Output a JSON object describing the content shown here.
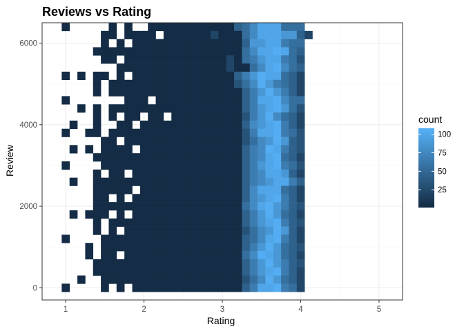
{
  "chart_data": {
    "type": "heatmap",
    "title": "Reviews vs Rating",
    "xlabel": "Rating",
    "ylabel": "Review",
    "xlim": [
      0.7,
      5.3
    ],
    "ylim": [
      -300,
      6500
    ],
    "x_ticks": [
      1,
      2,
      3,
      4,
      5
    ],
    "y_ticks": [
      0,
      2000,
      4000,
      6000
    ],
    "x_tick_labels": [
      "1",
      "2",
      "3",
      "4",
      "5"
    ],
    "y_tick_labels": [
      "0",
      "2000",
      "4000",
      "6000"
    ],
    "grid": true,
    "bin_width_x": 0.1,
    "bin_width_y": 200,
    "x_bin_start": 0.95,
    "y_bin_start": -100,
    "color_scale": {
      "low": "#132B43",
      "high": "#56B1F7",
      "min": 1,
      "max": 108
    },
    "legend": {
      "title": "count",
      "position": "right",
      "labels": [
        "100",
        "75",
        "50",
        "25"
      ],
      "breaks": [
        100,
        75,
        50,
        25
      ]
    },
    "cells": [
      [
        "...............................",
        "...............................",
        "...............................",
        "...............................",
        "...............................",
        "...............................",
        "...............................",
        "...............................",
        "...............................",
        "...............................",
        "...............................",
        "...............................",
        "...............................",
        "...............................",
        "...............................",
        "...............................",
        "...............................",
        "...............................",
        "...............................",
        "...............................",
        "...............................",
        "...............................",
        "...............................",
        "...............................",
        "...............................",
        "...............................",
        "...............................",
        "...............................",
        "...............................",
        "...............................",
        "...............................",
        "...............................",
        "..............................."
      ]
    ],
    "grid_counts": [
      "1.....1.1..11111111111457999555",
      ".....11.1111.1111112111579998842",
      ".....1.1.1111111111111148899655",
      "....11111111111111111115799A954",
      ".....11.11111111111112156899653",
      ".......11111111111111211579A754",
      "1.1.11.1.1111111111111468A99542",
      "....1.1111111111111111357A86542",
      "....1.11111111111111111468A8642",
      "1.......111.111111111114699A755",
      "..1.1.111111111111111114689A853",
      "....1.1.11.11.111111111368A7542",
      ".1..1..11.11111111111114789A642",
      "1..11.111111111111111113699A653",
      ".....11.1111111111111113578A843",
      ".1.1.1111.1111111111111467A9643",
      "....11111111111111111114679A542",
      "1....1111111111111111114689A653",
      "....1.11.1111111111111146799842",
      ".1..111111111111111111146789964",
      "....11111.111111111111147999542",
      "....11.1.111111111111114789A642",
      "....1111111111111111111579A8643",
      ".1.111.1.11111111111111468A8542",
      "....1.111111111111111114689A643",
      "....1.1.1111111111111113578A842",
      "1....1111111111111111114579A642",
      "...1.111111111111111111468A8543",
      "...1.11.11111111111111157A98542",
      "....1111111111111111111468A8643",
      "....11111111111111111114689A642",
      "..1..111111111111111111357A8542",
      "1....1.1.111111111111114699A652"
    ]
  }
}
